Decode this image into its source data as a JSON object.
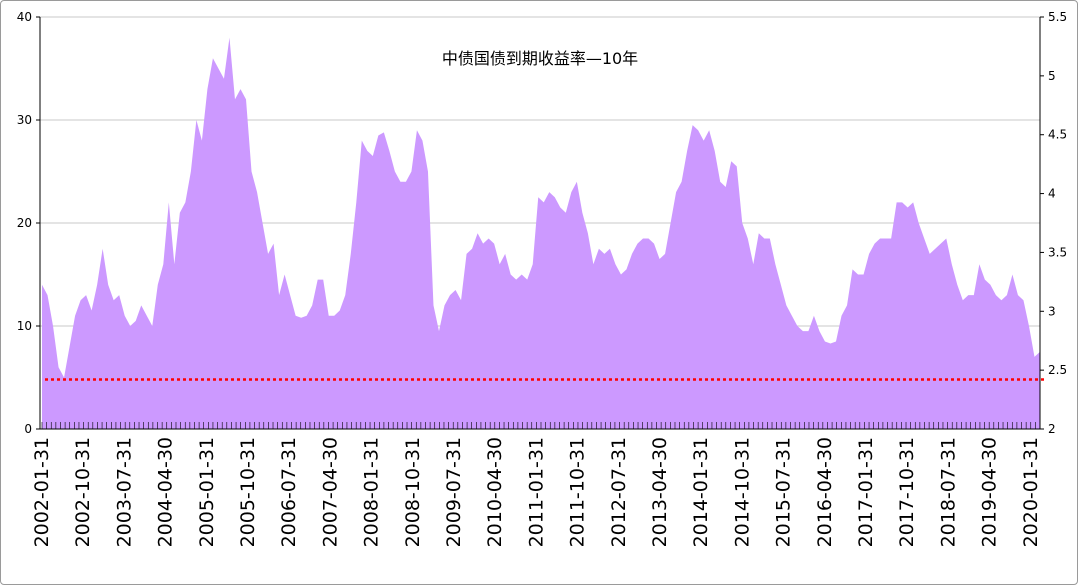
{
  "chart_data": {
    "type": "area",
    "title": "中债国债到期收益率—10年",
    "xlabel": "",
    "ylabel": "",
    "ylim": [
      0,
      40
    ],
    "y_ticks": [
      0,
      10,
      20,
      30,
      40
    ],
    "y2lim": [
      2,
      5.5
    ],
    "y2_ticks": [
      "2",
      "2.5",
      "3",
      "3.5",
      "4",
      "4.5",
      "5",
      "5.5"
    ],
    "x_tick_labels": [
      "2002-01-31",
      "2002-10-31",
      "2003-07-31",
      "2004-04-30",
      "2005-01-31",
      "2005-10-31",
      "2006-07-31",
      "2007-04-30",
      "2008-01-31",
      "2008-10-31",
      "2009-07-31",
      "2010-04-30",
      "2011-01-31",
      "2011-10-31",
      "2012-07-31",
      "2013-04-30",
      "2014-01-31",
      "2014-10-31",
      "2015-07-31",
      "2016-04-30",
      "2017-01-31",
      "2017-10-31",
      "2018-07-31",
      "2019-04-30",
      "2020-01-31"
    ],
    "grid": true,
    "area_color": "#cc99ff",
    "reference_line": {
      "value": 4.8,
      "color": "#ff0000",
      "style": "dotted"
    },
    "series": [
      {
        "values": [
          14,
          13,
          10,
          6,
          5,
          8,
          11,
          12.5,
          13,
          11.5,
          14,
          17.5,
          14,
          12.5,
          13,
          11,
          10,
          10.5,
          12,
          11,
          10,
          14,
          16,
          22,
          16,
          21,
          22,
          25,
          30,
          28,
          33,
          36,
          35,
          34,
          38,
          32,
          33,
          32,
          25,
          23,
          20,
          17,
          18,
          13,
          15,
          13,
          11,
          10.8,
          11,
          12,
          14.5,
          14.5,
          11,
          11,
          11.5,
          13,
          17,
          22,
          28,
          27,
          26.5,
          28.5,
          28.8,
          27,
          25,
          24,
          24,
          25,
          29,
          28,
          25,
          12,
          9.5,
          12,
          13,
          13.5,
          12.5,
          17,
          17.5,
          19,
          18,
          18.5,
          18,
          16,
          17,
          15,
          14.5,
          15,
          14.5,
          16,
          22.5,
          22,
          23,
          22.5,
          21.5,
          21,
          23,
          24,
          21,
          19,
          16,
          17.5,
          17,
          17.5,
          16,
          15,
          15.5,
          17,
          18,
          18.5,
          18.5,
          18,
          16.5,
          17,
          20,
          23,
          24,
          27,
          29.5,
          29,
          28,
          29,
          27,
          24,
          23.5,
          26,
          25.5,
          20,
          18.5,
          16,
          19,
          18.5,
          18.5,
          16,
          14,
          12,
          11,
          10,
          9.5,
          9.5,
          11,
          9.5,
          8.5,
          8.3,
          8.5,
          11,
          12,
          15.5,
          15,
          15,
          17,
          18,
          18.5,
          18.5,
          18.5,
          22,
          22,
          21.5,
          22,
          20,
          18.5,
          17,
          17.5,
          18,
          18.5,
          16,
          14,
          12.5,
          13,
          13,
          16,
          14.5,
          14,
          13,
          12.5,
          13,
          15,
          13,
          12.5,
          10,
          7,
          7.5
        ]
      }
    ]
  }
}
